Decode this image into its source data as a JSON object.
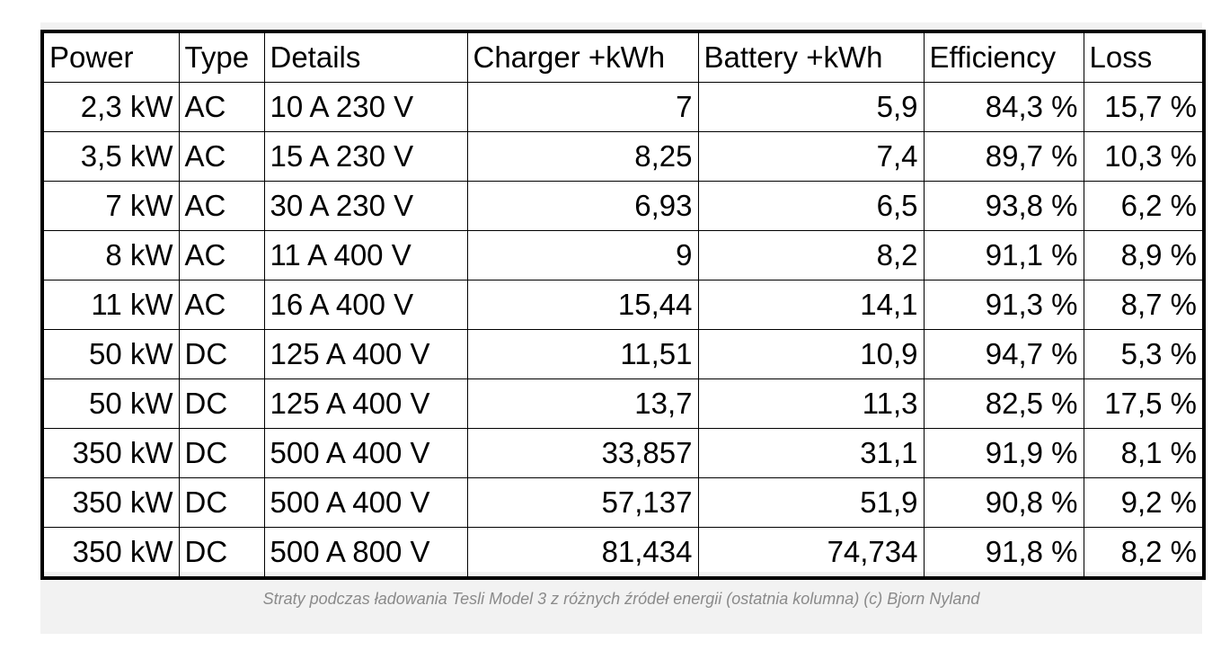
{
  "table": {
    "header": [
      "Power",
      "Type",
      "Details",
      "Charger +kWh",
      "Battery +kWh",
      "Efficiency",
      "Loss"
    ],
    "rows": [
      [
        "2,3 kW",
        "AC",
        "10 A 230 V",
        "7",
        "5,9",
        "84,3 %",
        "15,7 %"
      ],
      [
        "3,5 kW",
        "AC",
        "15 A 230 V",
        "8,25",
        "7,4",
        "89,7 %",
        "10,3 %"
      ],
      [
        "7 kW",
        "AC",
        "30 A 230 V",
        "6,93",
        "6,5",
        "93,8 %",
        "6,2 %"
      ],
      [
        "8 kW",
        "AC",
        "11 A 400 V",
        "9",
        "8,2",
        "91,1 %",
        "8,9 %"
      ],
      [
        "11 kW",
        "AC",
        "16 A 400 V",
        "15,44",
        "14,1",
        "91,3 %",
        "8,7 %"
      ],
      [
        "50 kW",
        "DC",
        "125 A 400 V",
        "11,51",
        "10,9",
        "94,7 %",
        "5,3 %"
      ],
      [
        "50 kW",
        "DC",
        "125 A 400 V",
        "13,7",
        "11,3",
        "82,5 %",
        "17,5 %"
      ],
      [
        "350 kW",
        "DC",
        "500 A 400 V",
        "33,857",
        "31,1",
        "91,9 %",
        "8,1 %"
      ],
      [
        "350 kW",
        "DC",
        "500 A 400 V",
        "57,137",
        "51,9",
        "90,8 %",
        "9,2 %"
      ],
      [
        "350 kW",
        "DC",
        "500 A 800 V",
        "81,434",
        "74,734",
        "91,8 %",
        "8,2 %"
      ]
    ]
  },
  "caption": "Straty podczas ładowania Tesli Model 3 z różnych źródeł energii (ostatnia kolumna) (c) Bjorn Nyland"
}
